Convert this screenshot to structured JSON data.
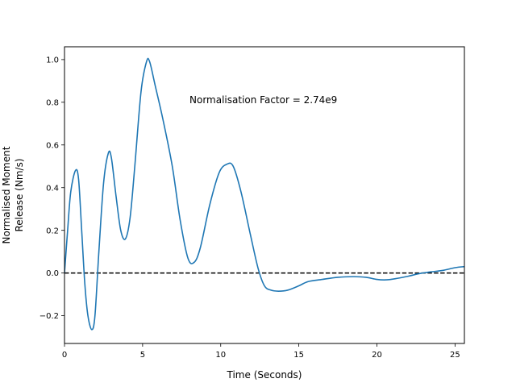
{
  "chart_data": {
    "type": "line",
    "title": "",
    "xlabel": "Time (Seconds)",
    "ylabel_lines": [
      "Normalised Moment",
      "Release (Nm/s)"
    ],
    "xlim": [
      0,
      25.6
    ],
    "ylim": [
      -0.33,
      1.06
    ],
    "x_ticks": [
      0,
      5,
      10,
      15,
      20,
      25
    ],
    "y_ticks": [
      -0.2,
      0.0,
      0.2,
      0.4,
      0.6,
      0.8,
      1.0
    ],
    "x_tick_labels": [
      "0",
      "5",
      "10",
      "15",
      "20",
      "25"
    ],
    "y_tick_labels": [
      "−0.2",
      "0.0",
      "0.2",
      "0.4",
      "0.6",
      "0.8",
      "1.0"
    ],
    "grid": false,
    "annotation": {
      "text": "Normalisation Factor = 2.74e9",
      "x": 8.0,
      "y": 0.81
    },
    "reference_line": {
      "y": 0,
      "style": "dashed",
      "color": "#000000"
    },
    "series": [
      {
        "color": "#1f77b4",
        "points": [
          [
            0,
            0
          ],
          [
            0.2,
            0.2
          ],
          [
            0.4,
            0.38
          ],
          [
            0.7,
            0.48
          ],
          [
            0.9,
            0.44
          ],
          [
            1.1,
            0.2
          ],
          [
            1.3,
            -0.05
          ],
          [
            1.5,
            -0.2
          ],
          [
            1.75,
            -0.265
          ],
          [
            1.95,
            -0.2
          ],
          [
            2.2,
            0.1
          ],
          [
            2.5,
            0.42
          ],
          [
            2.8,
            0.56
          ],
          [
            3.0,
            0.54
          ],
          [
            3.3,
            0.36
          ],
          [
            3.6,
            0.2
          ],
          [
            3.9,
            0.16
          ],
          [
            4.2,
            0.26
          ],
          [
            4.5,
            0.5
          ],
          [
            4.9,
            0.85
          ],
          [
            5.25,
            0.99
          ],
          [
            5.45,
            0.99
          ],
          [
            5.8,
            0.88
          ],
          [
            6.3,
            0.72
          ],
          [
            6.9,
            0.5
          ],
          [
            7.4,
            0.25
          ],
          [
            7.9,
            0.07
          ],
          [
            8.3,
            0.05
          ],
          [
            8.7,
            0.12
          ],
          [
            9.3,
            0.32
          ],
          [
            9.9,
            0.47
          ],
          [
            10.4,
            0.51
          ],
          [
            10.8,
            0.5
          ],
          [
            11.3,
            0.38
          ],
          [
            11.9,
            0.18
          ],
          [
            12.4,
            0.02
          ],
          [
            12.8,
            -0.06
          ],
          [
            13.2,
            -0.08
          ],
          [
            13.7,
            -0.085
          ],
          [
            14.3,
            -0.08
          ],
          [
            15.0,
            -0.06
          ],
          [
            15.6,
            -0.04
          ],
          [
            16.5,
            -0.03
          ],
          [
            17.5,
            -0.02
          ],
          [
            18.5,
            -0.017
          ],
          [
            19.3,
            -0.02
          ],
          [
            20.0,
            -0.03
          ],
          [
            20.6,
            -0.032
          ],
          [
            21.3,
            -0.025
          ],
          [
            22.0,
            -0.015
          ],
          [
            22.7,
            -0.003
          ],
          [
            23.4,
            0.005
          ],
          [
            24.2,
            0.012
          ],
          [
            25.0,
            0.025
          ],
          [
            25.6,
            0.03
          ]
        ]
      }
    ]
  }
}
